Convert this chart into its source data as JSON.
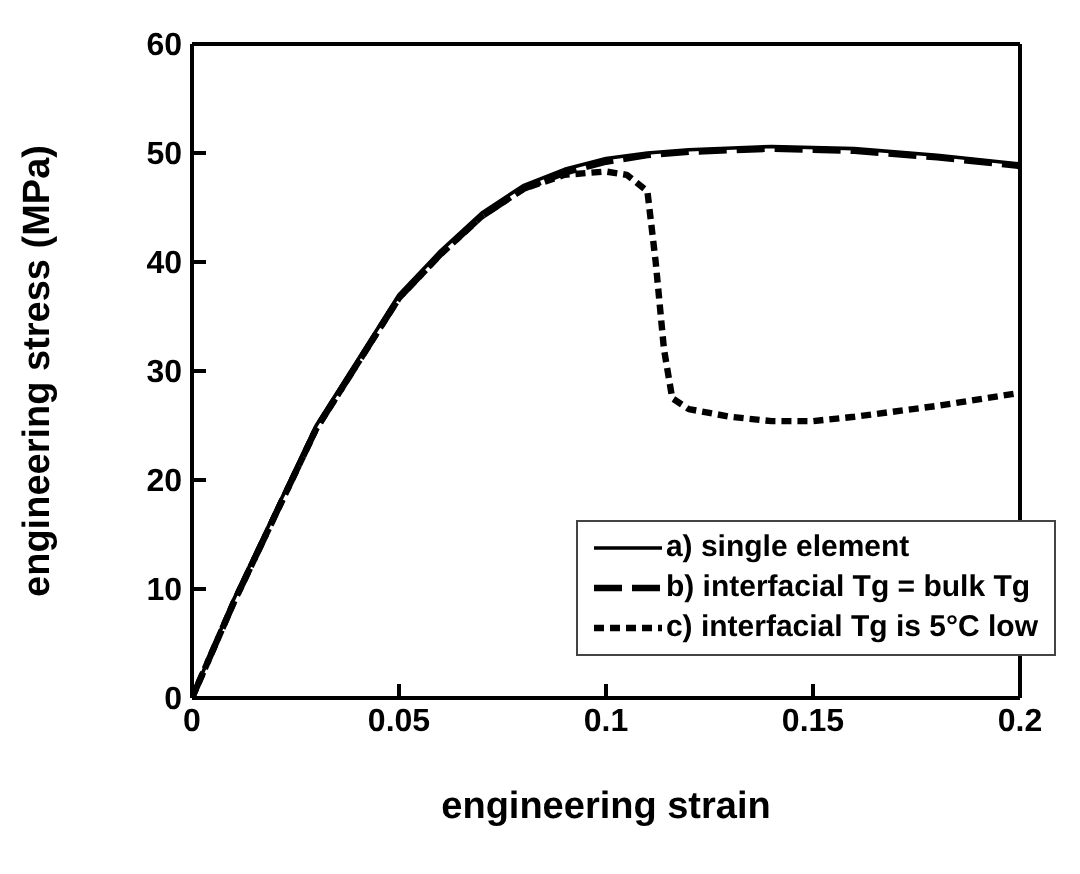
{
  "chart_data": {
    "type": "line",
    "xlabel": "engineering strain",
    "ylabel": "engineering stress (MPa)",
    "xlim": [
      0,
      0.2
    ],
    "xticks": [
      0,
      0.05,
      0.1,
      0.15,
      0.2
    ],
    "ylim": [
      0,
      60
    ],
    "yticks": [
      0,
      10,
      20,
      30,
      40,
      50,
      60
    ],
    "grid": false,
    "legend": "bottom right",
    "marker": "none",
    "series": [
      {
        "name": "a) single element",
        "color": "#000000",
        "line_style": "solid",
        "x": [
          0,
          0.01,
          0.02,
          0.03,
          0.04,
          0.05,
          0.06,
          0.07,
          0.08,
          0.09,
          0.1,
          0.11,
          0.12,
          0.14,
          0.16,
          0.18,
          0.2
        ],
        "values": [
          0,
          9,
          17,
          25,
          31,
          37,
          41,
          44.5,
          47,
          48.5,
          49.5,
          50,
          50.3,
          50.6,
          50.4,
          49.8,
          49
        ]
      },
      {
        "name": "b) interfacial Tg = bulk Tg",
        "color": "#000000",
        "line_style": "dashed",
        "x": [
          0,
          0.01,
          0.02,
          0.03,
          0.04,
          0.05,
          0.06,
          0.07,
          0.08,
          0.09,
          0.1,
          0.11,
          0.12,
          0.14,
          0.16,
          0.18,
          0.2
        ],
        "values": [
          0,
          8.7,
          16.7,
          24.7,
          30.7,
          36.7,
          40.7,
          44.2,
          46.7,
          48.2,
          49.2,
          49.8,
          50.1,
          50.4,
          50.2,
          49.6,
          48.8
        ]
      },
      {
        "name": "c) interfacial Tg is 5°C low",
        "color": "#000000",
        "line_style": "dotted",
        "x": [
          0,
          0.01,
          0.02,
          0.03,
          0.04,
          0.05,
          0.06,
          0.07,
          0.08,
          0.09,
          0.1,
          0.105,
          0.11,
          0.112,
          0.114,
          0.116,
          0.12,
          0.13,
          0.14,
          0.15,
          0.16,
          0.18,
          0.2
        ],
        "values": [
          0,
          8.7,
          16.7,
          24.7,
          30.7,
          36.7,
          40.7,
          44.2,
          46.7,
          48,
          48.3,
          48,
          46.5,
          40,
          32,
          27.5,
          26.5,
          25.8,
          25.4,
          25.4,
          25.8,
          26.8,
          28
        ]
      }
    ]
  }
}
